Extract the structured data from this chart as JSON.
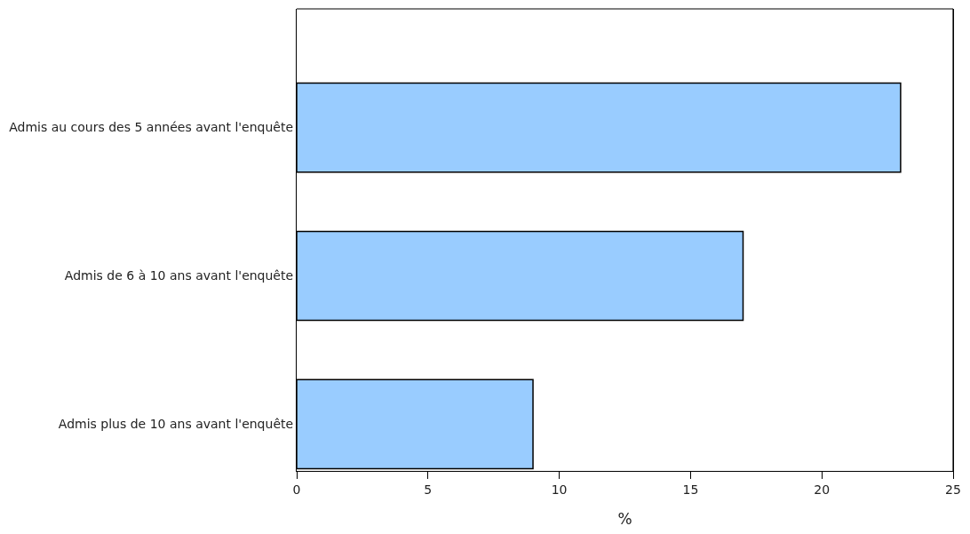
{
  "chart_data": {
    "type": "bar",
    "orientation": "horizontal",
    "xlabel": "%",
    "categories": [
      "Admis au cours des 5 années avant l'enquête",
      "Admis de 6 à 10 ans avant l'enquête",
      "Admis plus de 10 ans avant l'enquête"
    ],
    "values": [
      23,
      17,
      9
    ],
    "color": "#99ccff",
    "xlim": [
      0,
      25
    ],
    "xticks": [
      0,
      5,
      10,
      15,
      20,
      25
    ]
  }
}
